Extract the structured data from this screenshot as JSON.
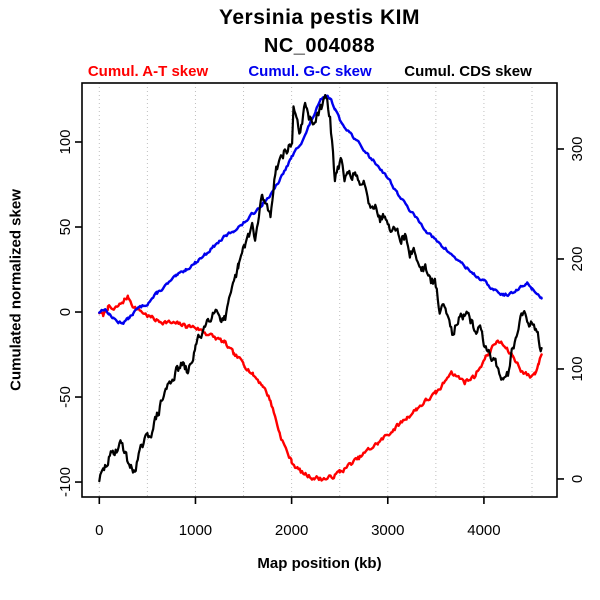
{
  "title": "Yersinia pestis KIM",
  "subtitle": "NC_004088",
  "background": "#ffffff",
  "legend": [
    {
      "label": "Cumul. A-T skew",
      "color": "#ff0000"
    },
    {
      "label": "Cumul. G-C skew",
      "color": "#0000ee"
    },
    {
      "label": "Cumul. CDS skew",
      "color": "#000000"
    }
  ],
  "chart_data": {
    "type": "line",
    "title": "Yersinia pestis KIM",
    "subtitle": "NC_004088",
    "xlabel": "Map position (kb)",
    "ylabel_left": "Cumulated normalized skew",
    "grid": "vertical-dotted",
    "grid_color": "#bfbfbf",
    "x_ticks": [
      0,
      1000,
      2000,
      3000,
      4000
    ],
    "x_gridlines_kb": [
      0,
      500,
      1000,
      1500,
      2000,
      2500,
      3000,
      3500,
      4000,
      4500
    ],
    "xlim": [
      -180,
      4760
    ],
    "left_ticks": [
      -100,
      -50,
      0,
      50,
      100
    ],
    "left_lim": [
      -108.8,
      134.7
    ],
    "right_ticks": [
      0,
      100,
      200,
      300
    ],
    "right_lim": [
      -16.4,
      360.0
    ],
    "series": [
      {
        "name": "Cumul. A-T skew",
        "color": "#ff0000",
        "axis": "left",
        "width": 2.4,
        "noise": 1.2,
        "seed": 7,
        "points": [
          [
            0,
            0
          ],
          [
            40,
            -2
          ],
          [
            90,
            3
          ],
          [
            150,
            1
          ],
          [
            210,
            4
          ],
          [
            260,
            7
          ],
          [
            300,
            9
          ],
          [
            360,
            3
          ],
          [
            420,
            1
          ],
          [
            500,
            -2
          ],
          [
            600,
            -5
          ],
          [
            700,
            -6
          ],
          [
            800,
            -7
          ],
          [
            900,
            -8
          ],
          [
            1000,
            -9
          ],
          [
            1100,
            -12
          ],
          [
            1200,
            -15
          ],
          [
            1300,
            -18
          ],
          [
            1400,
            -25
          ],
          [
            1500,
            -30
          ],
          [
            1600,
            -37
          ],
          [
            1700,
            -43
          ],
          [
            1780,
            -52
          ],
          [
            1880,
            -72
          ],
          [
            1950,
            -82
          ],
          [
            2000,
            -88
          ],
          [
            2060,
            -92
          ],
          [
            2120,
            -95
          ],
          [
            2200,
            -97
          ],
          [
            2300,
            -98
          ],
          [
            2380,
            -98
          ],
          [
            2450,
            -96
          ],
          [
            2500,
            -94
          ],
          [
            2560,
            -92
          ],
          [
            2620,
            -89
          ],
          [
            2700,
            -86
          ],
          [
            2800,
            -81
          ],
          [
            2900,
            -77
          ],
          [
            3000,
            -72
          ],
          [
            3100,
            -67
          ],
          [
            3200,
            -62
          ],
          [
            3300,
            -57
          ],
          [
            3400,
            -52
          ],
          [
            3500,
            -48
          ],
          [
            3560,
            -44
          ],
          [
            3650,
            -35
          ],
          [
            3700,
            -37
          ],
          [
            3800,
            -41
          ],
          [
            3900,
            -38
          ],
          [
            3960,
            -32
          ],
          [
            4040,
            -25
          ],
          [
            4120,
            -18
          ],
          [
            4180,
            -18
          ],
          [
            4250,
            -23
          ],
          [
            4300,
            -26
          ],
          [
            4400,
            -35
          ],
          [
            4480,
            -38
          ],
          [
            4530,
            -36
          ],
          [
            4570,
            -30
          ],
          [
            4600,
            -25
          ]
        ]
      },
      {
        "name": "Cumul. G-C skew",
        "color": "#0000ee",
        "axis": "left",
        "width": 2.4,
        "noise": 0.8,
        "seed": 13,
        "points": [
          [
            0,
            0
          ],
          [
            50,
            2
          ],
          [
            100,
            -1
          ],
          [
            150,
            -4
          ],
          [
            200,
            -6
          ],
          [
            250,
            -6
          ],
          [
            300,
            -4
          ],
          [
            350,
            -1
          ],
          [
            400,
            2
          ],
          [
            500,
            5
          ],
          [
            600,
            11
          ],
          [
            700,
            16
          ],
          [
            800,
            21
          ],
          [
            900,
            25
          ],
          [
            1000,
            29
          ],
          [
            1100,
            34
          ],
          [
            1200,
            39
          ],
          [
            1300,
            44
          ],
          [
            1400,
            48
          ],
          [
            1500,
            52
          ],
          [
            1600,
            58
          ],
          [
            1700,
            64
          ],
          [
            1800,
            70
          ],
          [
            1900,
            80
          ],
          [
            2000,
            91
          ],
          [
            2100,
            100
          ],
          [
            2150,
            105
          ],
          [
            2200,
            112
          ],
          [
            2250,
            118
          ],
          [
            2300,
            124
          ],
          [
            2350,
            127
          ],
          [
            2400,
            126
          ],
          [
            2450,
            120
          ],
          [
            2500,
            113
          ],
          [
            2600,
            106
          ],
          [
            2700,
            99
          ],
          [
            2800,
            92
          ],
          [
            2900,
            86
          ],
          [
            3000,
            79
          ],
          [
            3100,
            70
          ],
          [
            3200,
            62
          ],
          [
            3300,
            55
          ],
          [
            3400,
            48
          ],
          [
            3500,
            42
          ],
          [
            3600,
            37
          ],
          [
            3700,
            32
          ],
          [
            3800,
            27
          ],
          [
            3900,
            22
          ],
          [
            4000,
            18
          ],
          [
            4100,
            13
          ],
          [
            4200,
            10
          ],
          [
            4300,
            11
          ],
          [
            4400,
            15
          ],
          [
            4450,
            17
          ],
          [
            4500,
            14
          ],
          [
            4550,
            11
          ],
          [
            4600,
            8
          ]
        ]
      },
      {
        "name": "Cumul. CDS skew",
        "color": "#000000",
        "axis": "right",
        "width": 2.2,
        "noise": 4.0,
        "seed": 29,
        "points": [
          [
            0,
            0
          ],
          [
            50,
            8
          ],
          [
            100,
            18
          ],
          [
            150,
            25
          ],
          [
            240,
            33
          ],
          [
            280,
            20
          ],
          [
            350,
            6
          ],
          [
            400,
            18
          ],
          [
            450,
            30
          ],
          [
            550,
            45
          ],
          [
            620,
            62
          ],
          [
            690,
            81
          ],
          [
            780,
            95
          ],
          [
            860,
            104
          ],
          [
            925,
            96
          ],
          [
            1000,
            120
          ],
          [
            1100,
            140
          ],
          [
            1200,
            156
          ],
          [
            1260,
            148
          ],
          [
            1310,
            145
          ],
          [
            1413,
            181
          ],
          [
            1444,
            192
          ],
          [
            1517,
            213
          ],
          [
            1590,
            231
          ],
          [
            1620,
            215
          ],
          [
            1694,
            258
          ],
          [
            1780,
            240
          ],
          [
            1830,
            281
          ],
          [
            1900,
            295
          ],
          [
            2005,
            304
          ],
          [
            2020,
            340
          ],
          [
            2090,
            315
          ],
          [
            2140,
            338
          ],
          [
            2200,
            325
          ],
          [
            2280,
            330
          ],
          [
            2350,
            347
          ],
          [
            2400,
            330
          ],
          [
            2430,
            295
          ],
          [
            2450,
            270
          ],
          [
            2480,
            285
          ],
          [
            2520,
            288
          ],
          [
            2550,
            270
          ],
          [
            2600,
            277
          ],
          [
            2660,
            279
          ],
          [
            2710,
            263
          ],
          [
            2760,
            269
          ],
          [
            2820,
            249
          ],
          [
            2870,
            252
          ],
          [
            2920,
            235
          ],
          [
            2970,
            242
          ],
          [
            3020,
            228
          ],
          [
            3070,
            234
          ],
          [
            3130,
            217
          ],
          [
            3180,
            222
          ],
          [
            3230,
            204
          ],
          [
            3280,
            208
          ],
          [
            3340,
            190
          ],
          [
            3390,
            193
          ],
          [
            3440,
            178
          ],
          [
            3490,
            181
          ],
          [
            3540,
            152
          ],
          [
            3600,
            160
          ],
          [
            3670,
            134
          ],
          [
            3730,
            145
          ],
          [
            3830,
            147
          ],
          [
            3900,
            138
          ],
          [
            3960,
            135
          ],
          [
            4030,
            115
          ],
          [
            4100,
            111
          ],
          [
            4150,
            100
          ],
          [
            4200,
            88
          ],
          [
            4250,
            96
          ],
          [
            4280,
            114
          ],
          [
            4340,
            125
          ],
          [
            4370,
            147
          ],
          [
            4400,
            151
          ],
          [
            4480,
            140
          ],
          [
            4550,
            138
          ],
          [
            4580,
            122
          ],
          [
            4600,
            119
          ]
        ]
      }
    ]
  }
}
